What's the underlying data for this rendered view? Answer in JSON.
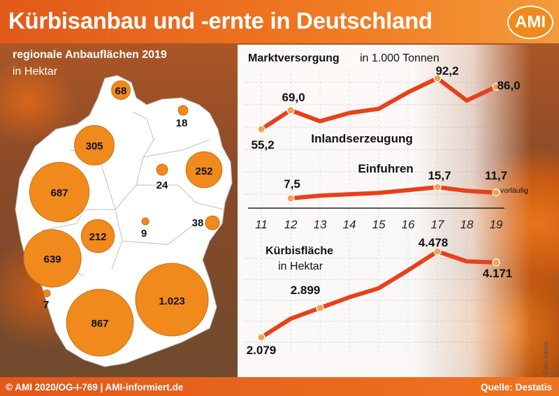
{
  "title": "Kürbisanbau und -ernte in Deutschland",
  "logo": "AMI",
  "footer": {
    "left": "© AMI 2020/OG-I-769 | AMI-informiert.de",
    "right": "Quelle: Destatis"
  },
  "photo_credit": "Foto: fotolia",
  "map": {
    "title": "regionale Anbauflächen 2019",
    "subtitle": "in Hektar",
    "regions": [
      {
        "label": "68",
        "value": 68
      },
      {
        "label": "18",
        "value": 18
      },
      {
        "label": "305",
        "value": 305
      },
      {
        "label": "252",
        "value": 252
      },
      {
        "label": "24",
        "value": 24
      },
      {
        "label": "687",
        "value": 687
      },
      {
        "label": "212",
        "value": 212
      },
      {
        "label": "9",
        "value": 9
      },
      {
        "label": "38",
        "value": 38
      },
      {
        "label": "639",
        "value": 639
      },
      {
        "label": "7",
        "value": 7
      },
      {
        "label": "1.023",
        "value": 1023
      },
      {
        "label": "867",
        "value": 867
      }
    ]
  },
  "chart_data": [
    {
      "type": "line",
      "title": "Marktversorgung",
      "unit": "in 1.000 Tonnen",
      "x": [
        "11",
        "12",
        "13",
        "14",
        "15",
        "16",
        "17",
        "18",
        "19"
      ],
      "series": [
        {
          "name": "Inlandserzeugung",
          "values": [
            55.2,
            69.0,
            61,
            67,
            70,
            82,
            92.2,
            76,
            86.0
          ],
          "labels": {
            "0": "55,2",
            "1": "69,0",
            "6": "92,2",
            "8": "86,0"
          }
        },
        {
          "name": "Einfuhren",
          "values": [
            null,
            7.5,
            9.5,
            10.5,
            11.5,
            13.5,
            15.7,
            13.0,
            11.7
          ],
          "labels": {
            "1": "7,5",
            "6": "15,7",
            "8": "11,7"
          },
          "note": "vorläufig"
        }
      ]
    },
    {
      "type": "line",
      "title": "Kürbisfläche",
      "unit": "in Hektar",
      "x": [
        "11",
        "12",
        "13",
        "14",
        "15",
        "16",
        "17",
        "18",
        "19"
      ],
      "series": [
        {
          "name": "Kürbisfläche",
          "values": [
            2079,
            2600,
            2899,
            3200,
            3450,
            3950,
            4478,
            4200,
            4171
          ],
          "labels": {
            "0": "2.079",
            "2": "2.899",
            "6": "4.478",
            "8": "4.171"
          }
        }
      ]
    }
  ],
  "colors": {
    "accent": "#e8401a",
    "bubble": "#f08a1c",
    "header": "#e2591a"
  }
}
